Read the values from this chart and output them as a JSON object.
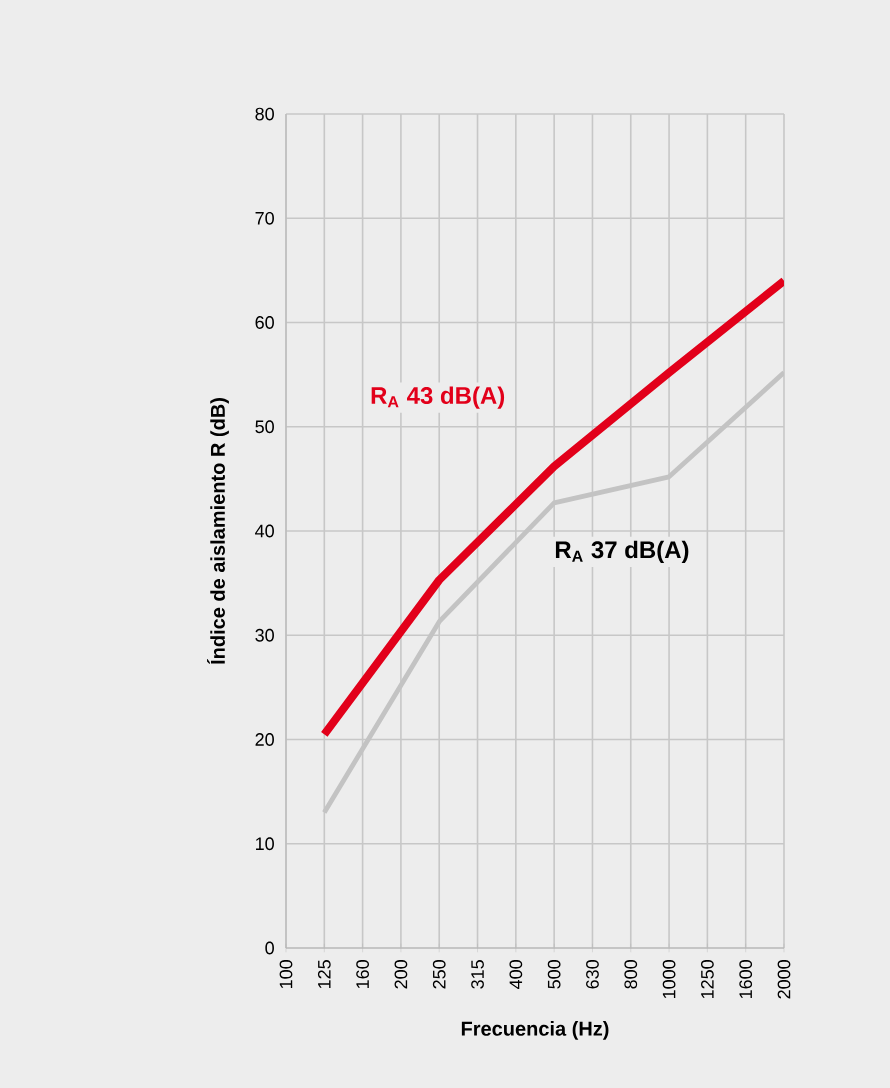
{
  "chart_data": {
    "type": "line",
    "xlabel": "Frecuencia (Hz)",
    "ylabel": "Índice de aislamiento R (dB)",
    "categories": [
      "100",
      "125",
      "160",
      "200",
      "250",
      "315",
      "400",
      "500",
      "630",
      "800",
      "1000",
      "1250",
      "1600",
      "2000"
    ],
    "ylim": [
      0,
      80
    ],
    "yticks": [
      0,
      10,
      20,
      30,
      40,
      50,
      60,
      70,
      80
    ],
    "grid": true,
    "legend": false,
    "marker": "none",
    "line_style": "solid",
    "series": [
      {
        "name": "R$_{A}$ 43 dB(A)",
        "color": "#e2001a",
        "values": [
          null,
          20.5,
          null,
          null,
          35.3,
          null,
          null,
          46.2,
          null,
          null,
          55.2,
          null,
          null,
          64
        ]
      },
      {
        "name": "R$_{A}$ 37 dB(A)",
        "color": "#c3c3c3",
        "values": [
          null,
          13,
          null,
          null,
          31.3,
          null,
          null,
          42.7,
          null,
          null,
          45.2,
          null,
          null,
          55.2
        ]
      }
    ]
  }
}
